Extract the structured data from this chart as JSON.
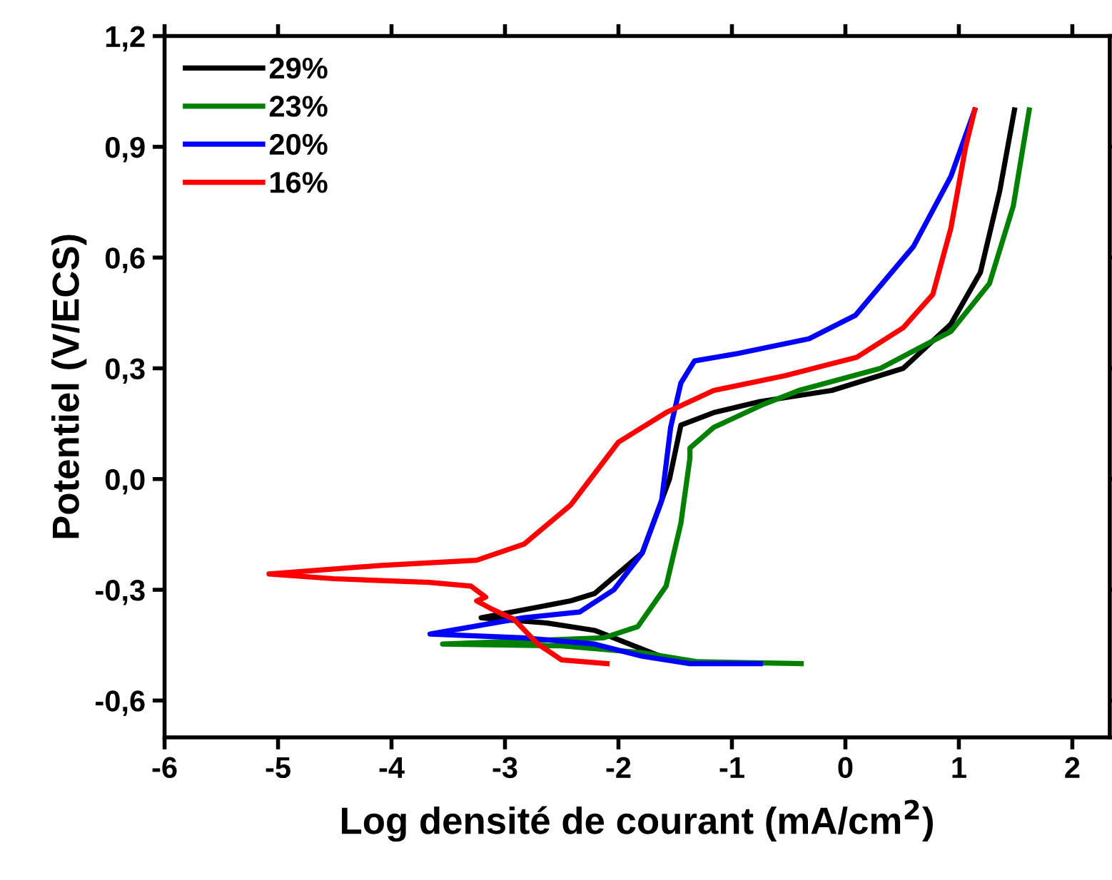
{
  "chart_data": {
    "type": "line",
    "xlabel": "Log densité de courant (mA/cm$^{2}$)",
    "ylabel": "Potentiel (V/ECS)",
    "xlim": [
      -6,
      2.33
    ],
    "ylim": [
      -0.7,
      1.2
    ],
    "xticks": [
      -6,
      -5,
      -4,
      -3,
      -2,
      -1,
      0,
      1,
      2
    ],
    "yticks": [
      {
        "value": -0.6,
        "label": "-0,6"
      },
      {
        "value": -0.3,
        "label": "-0,3"
      },
      {
        "value": 0.0,
        "label": "0,0"
      },
      {
        "value": 0.3,
        "label": "0,3"
      },
      {
        "value": 0.6,
        "label": "0,6"
      },
      {
        "value": 0.9,
        "label": "0,9"
      },
      {
        "value": 1.2,
        "label": "1,2"
      }
    ],
    "legend": "top left",
    "grid": false,
    "line_style": "solid",
    "marker": "none",
    "series": [
      {
        "name": "29%",
        "color": "#000000",
        "x": [
          1.49,
          1.36,
          1.19,
          0.93,
          0.51,
          -0.12,
          -0.75,
          -1.16,
          -1.45,
          -1.55,
          -1.79,
          -2.21,
          -2.42,
          -3.21,
          -2.63,
          -2.21,
          -1.88,
          -1.58
        ],
        "values": [
          1.0,
          0.78,
          0.56,
          0.42,
          0.3,
          0.24,
          0.21,
          0.18,
          0.146,
          0.0,
          -0.2,
          -0.31,
          -0.33,
          -0.376,
          -0.39,
          -0.41,
          -0.45,
          -0.486
        ]
      },
      {
        "name": "23%",
        "color": "#008000",
        "x": [
          1.62,
          1.48,
          1.27,
          0.93,
          0.31,
          -0.41,
          -0.74,
          -1.16,
          -1.37,
          -1.37,
          -1.45,
          -1.58,
          -1.83,
          -2.13,
          -3.55,
          -2.5,
          -1.8,
          -1.3,
          -0.39
        ],
        "values": [
          1.0,
          0.74,
          0.53,
          0.4,
          0.3,
          0.24,
          0.2,
          0.14,
          0.084,
          0.057,
          -0.12,
          -0.29,
          -0.4,
          -0.43,
          -0.447,
          -0.452,
          -0.47,
          -0.495,
          -0.5
        ]
      },
      {
        "name": "20%",
        "color": "#0000ff",
        "x": [
          1.14,
          0.93,
          0.6,
          0.09,
          -0.32,
          -0.95,
          -1.33,
          -1.45,
          -1.54,
          -1.62,
          -1.79,
          -2.04,
          -2.34,
          -2.84,
          -3.66,
          -2.84,
          -2.21,
          -1.79,
          -1.37,
          -0.75
        ],
        "values": [
          1.0,
          0.82,
          0.63,
          0.444,
          0.38,
          0.34,
          0.32,
          0.26,
          0.14,
          -0.06,
          -0.2,
          -0.3,
          -0.36,
          -0.376,
          -0.42,
          -0.43,
          -0.447,
          -0.48,
          -0.5,
          -0.5
        ]
      },
      {
        "name": "16%",
        "color": "#ff0000",
        "x": [
          1.14,
          1.06,
          0.93,
          0.77,
          0.51,
          0.1,
          -0.53,
          -1.16,
          -1.58,
          -2.0,
          -2.42,
          -2.83,
          -3.25,
          -4.09,
          -5.08,
          -4.51,
          -3.67,
          -3.3,
          -3.17,
          -3.25,
          -3.13,
          -2.92,
          -2.71,
          -2.5,
          -2.1
        ],
        "values": [
          1.0,
          0.9,
          0.68,
          0.5,
          0.41,
          0.33,
          0.28,
          0.24,
          0.18,
          0.1,
          -0.07,
          -0.176,
          -0.22,
          -0.234,
          -0.257,
          -0.27,
          -0.28,
          -0.29,
          -0.32,
          -0.33,
          -0.35,
          -0.38,
          -0.447,
          -0.49,
          -0.5
        ]
      }
    ]
  }
}
